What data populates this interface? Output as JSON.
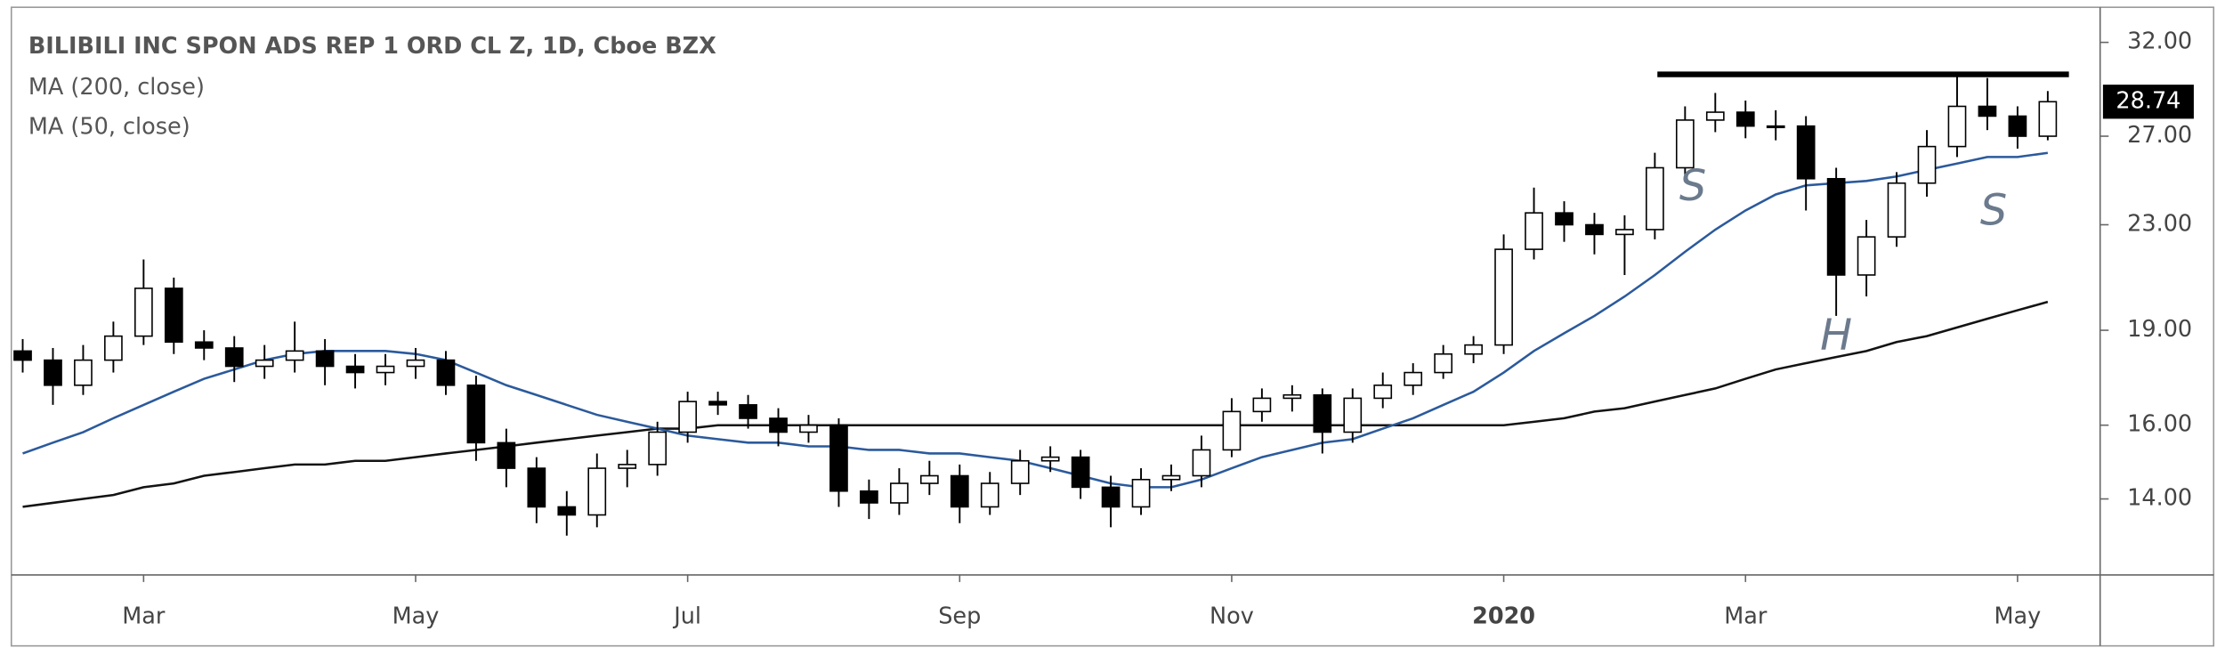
{
  "chart_data": {
    "type": "candlestick",
    "title": "BILIBILI INC SPON ADS REP 1 ORD CL Z, 1D, Cboe BZX",
    "categories": [
      null,
      null,
      null,
      null,
      "Mar",
      null,
      null,
      null,
      null,
      null,
      null,
      null,
      null,
      "May",
      null,
      null,
      null,
      null,
      null,
      null,
      null,
      null,
      "Jul",
      null,
      null,
      null,
      null,
      null,
      null,
      null,
      null,
      "Sep",
      null,
      null,
      null,
      null,
      null,
      null,
      null,
      null,
      "Nov",
      null,
      null,
      null,
      null,
      null,
      null,
      null,
      null,
      "2020",
      null,
      null,
      null,
      null,
      null,
      null,
      null,
      "Mar",
      null,
      null,
      null,
      null,
      null,
      null,
      null,
      null,
      "May",
      null
    ],
    "open": [
      18.3,
      18.0,
      17.2,
      18.0,
      18.8,
      20.5,
      18.6,
      18.4,
      17.8,
      18.0,
      18.3,
      17.8,
      17.6,
      17.8,
      18.0,
      17.2,
      15.5,
      14.8,
      13.8,
      13.6,
      14.8,
      14.9,
      15.8,
      16.7,
      16.6,
      16.2,
      15.8,
      16.0,
      14.2,
      13.9,
      14.4,
      14.6,
      13.8,
      14.4,
      15.0,
      15.1,
      14.3,
      13.8,
      14.5,
      14.6,
      15.3,
      16.4,
      16.8,
      16.9,
      15.8,
      16.8,
      17.2,
      17.6,
      18.2,
      18.5,
      22.0,
      23.5,
      23.0,
      22.6,
      22.8,
      25.5,
      27.8,
      28.2,
      27.5,
      27.5,
      25.0,
      21.0,
      22.5,
      24.8,
      26.5,
      28.5,
      28.0,
      27.0
    ],
    "high": [
      18.7,
      18.4,
      18.5,
      19.3,
      21.6,
      20.9,
      19.0,
      18.8,
      18.5,
      19.3,
      18.7,
      18.2,
      18.2,
      18.4,
      18.3,
      17.5,
      15.9,
      15.1,
      14.2,
      15.2,
      15.3,
      16.1,
      17.0,
      17.0,
      16.9,
      16.5,
      16.3,
      16.2,
      14.5,
      14.8,
      15.0,
      14.9,
      14.7,
      15.3,
      15.4,
      15.3,
      14.6,
      14.8,
      14.9,
      15.7,
      16.8,
      17.1,
      17.2,
      17.1,
      17.1,
      17.6,
      17.9,
      18.5,
      18.8,
      22.6,
      24.6,
      24.0,
      23.5,
      23.4,
      26.2,
      28.5,
      29.2,
      28.8,
      28.3,
      28.0,
      25.5,
      23.2,
      25.3,
      27.3,
      30.3,
      30.0,
      28.5,
      29.3
    ],
    "low": [
      17.6,
      16.6,
      16.9,
      17.6,
      18.5,
      18.2,
      18.0,
      17.3,
      17.4,
      17.6,
      17.2,
      17.1,
      17.2,
      17.4,
      16.9,
      15.0,
      14.3,
      13.4,
      13.1,
      13.3,
      14.3,
      14.6,
      15.5,
      16.3,
      15.9,
      15.4,
      15.5,
      13.8,
      13.5,
      13.6,
      14.1,
      13.4,
      13.6,
      14.1,
      14.7,
      14.0,
      13.3,
      13.6,
      14.2,
      14.3,
      15.1,
      16.1,
      16.4,
      15.2,
      15.5,
      16.5,
      16.9,
      17.4,
      17.9,
      18.2,
      21.6,
      22.3,
      21.8,
      21.0,
      22.4,
      25.1,
      27.2,
      26.9,
      26.8,
      23.6,
      19.5,
      20.2,
      22.1,
      24.2,
      26.0,
      27.3,
      26.4,
      26.8
    ],
    "close": [
      18.0,
      17.2,
      18.0,
      18.8,
      20.5,
      18.6,
      18.4,
      17.8,
      18.0,
      18.3,
      17.8,
      17.6,
      17.8,
      18.0,
      17.2,
      15.5,
      14.8,
      13.8,
      13.6,
      14.8,
      14.9,
      15.8,
      16.7,
      16.6,
      16.2,
      15.8,
      16.0,
      14.2,
      13.9,
      14.4,
      14.6,
      13.8,
      14.4,
      15.0,
      15.1,
      14.3,
      13.8,
      14.5,
      14.6,
      15.3,
      16.4,
      16.8,
      16.9,
      15.8,
      16.8,
      17.2,
      17.6,
      18.2,
      18.5,
      22.0,
      23.5,
      23.0,
      22.6,
      22.8,
      25.5,
      27.8,
      28.2,
      27.5,
      27.5,
      25.0,
      21.0,
      22.5,
      24.8,
      26.5,
      28.5,
      28.0,
      27.0,
      28.74
    ],
    "up_color": "#ffffff",
    "down_color": "#000000",
    "series": [
      {
        "name": "MA (200, close)",
        "color": "#131313",
        "values": [
          13.8,
          13.9,
          14.0,
          14.1,
          14.3,
          14.4,
          14.6,
          14.7,
          14.8,
          14.9,
          14.9,
          15.0,
          15.0,
          15.1,
          15.2,
          15.3,
          15.4,
          15.5,
          15.6,
          15.7,
          15.8,
          15.9,
          15.9,
          16.0,
          16.0,
          16.0,
          16.0,
          16.0,
          16.0,
          16.0,
          16.0,
          16.0,
          16.0,
          16.0,
          16.0,
          16.0,
          16.0,
          16.0,
          16.0,
          16.0,
          16.0,
          16.0,
          16.0,
          16.0,
          16.0,
          16.0,
          16.0,
          16.0,
          16.0,
          16.0,
          16.1,
          16.2,
          16.4,
          16.5,
          16.7,
          16.9,
          17.1,
          17.4,
          17.7,
          17.9,
          18.1,
          18.3,
          18.6,
          18.8,
          19.1,
          19.4,
          19.7,
          20.0
        ]
      },
      {
        "name": "MA (50, close)",
        "color": "#2b5a9c",
        "values": [
          15.2,
          15.5,
          15.8,
          16.2,
          16.6,
          17.0,
          17.4,
          17.7,
          18.0,
          18.2,
          18.3,
          18.3,
          18.3,
          18.2,
          18.0,
          17.6,
          17.2,
          16.9,
          16.6,
          16.3,
          16.1,
          15.9,
          15.7,
          15.6,
          15.5,
          15.5,
          15.4,
          15.4,
          15.3,
          15.3,
          15.2,
          15.2,
          15.1,
          15.0,
          14.8,
          14.6,
          14.4,
          14.3,
          14.3,
          14.5,
          14.8,
          15.1,
          15.3,
          15.5,
          15.6,
          15.9,
          16.2,
          16.6,
          17.0,
          17.6,
          18.3,
          18.9,
          19.5,
          20.2,
          21.0,
          21.9,
          22.8,
          23.6,
          24.3,
          24.7,
          24.8,
          24.9,
          25.1,
          25.4,
          25.7,
          26.0,
          26.0,
          26.2
        ]
      }
    ],
    "last_price": {
      "value": 28.74,
      "label": "28.74"
    },
    "resistance": 30.2,
    "annotations": [
      "S",
      "H",
      "S"
    ],
    "log_scale": true,
    "ylim": [
      12.2,
      34.1
    ],
    "yticks": [
      {
        "value": 14,
        "label": "14.00"
      },
      {
        "value": 16,
        "label": "16.00"
      },
      {
        "value": 19,
        "label": "19.00"
      },
      {
        "value": 23,
        "label": "23.00"
      },
      {
        "value": 27,
        "label": "27.00"
      },
      {
        "value": 32,
        "label": "32.00"
      }
    ],
    "grid": false
  }
}
